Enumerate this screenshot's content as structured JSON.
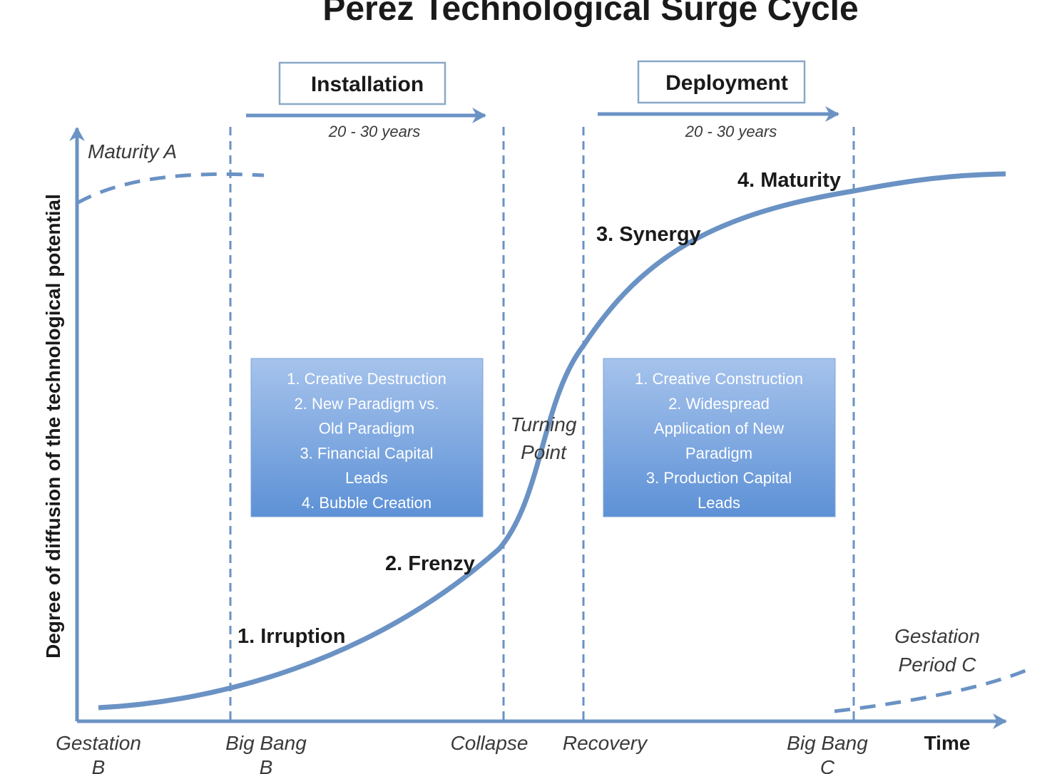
{
  "title": "Perez Technological Surge Cycle",
  "phases": [
    {
      "label": "Installation",
      "duration": "20 - 30 years"
    },
    {
      "label": "Deployment",
      "duration": "20 - 30 years"
    }
  ],
  "axes": {
    "y_label": "Degree of diffusion of the technological potential",
    "x_label": "Time"
  },
  "maturity_a": "Maturity A",
  "stages": [
    "1. Irruption",
    "2. Frenzy",
    "3. Synergy",
    "4. Maturity"
  ],
  "turning_point": [
    "Turning",
    "Point"
  ],
  "gestation_c": [
    "Gestation",
    "Period C"
  ],
  "boxes": [
    {
      "lines": [
        "1. Creative Destruction",
        "2. New Paradigm vs.",
        "Old Paradigm",
        "3. Financial Capital",
        "Leads",
        "4. Bubble Creation"
      ]
    },
    {
      "lines": [
        "1. Creative Construction",
        "2. Widespread",
        "Application of New",
        "Paradigm",
        "3. Production Capital",
        "Leads"
      ]
    }
  ],
  "x_labels": [
    {
      "lines": [
        "Gestation",
        "B"
      ]
    },
    {
      "lines": [
        "Big Bang",
        "B"
      ]
    },
    {
      "lines": [
        "Collapse"
      ]
    },
    {
      "lines": [
        "Recovery"
      ]
    },
    {
      "lines": [
        "Big Bang",
        "C"
      ]
    }
  ]
}
